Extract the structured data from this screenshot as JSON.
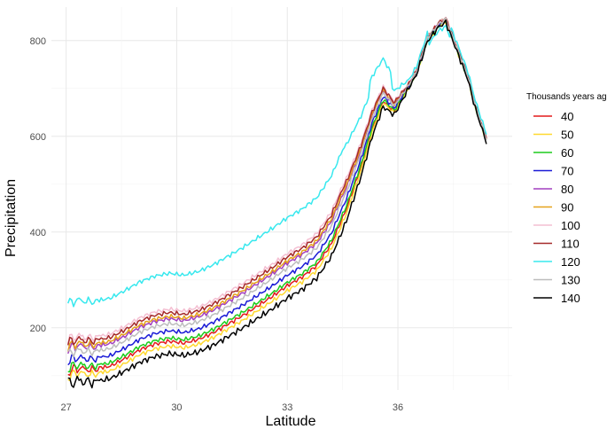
{
  "chart_data": {
    "type": "line",
    "title": "",
    "xlabel": "Latitude",
    "ylabel": "Precipitation",
    "xlim": [
      26.6,
      39.1
    ],
    "ylim": [
      70,
      870
    ],
    "x_ticks": [
      27,
      30,
      33,
      36
    ],
    "y_ticks": [
      200,
      400,
      600,
      800
    ],
    "grid": true,
    "legend": {
      "title": "Thousands years ago",
      "position": "right"
    },
    "base_curve": {
      "x": [
        27.05,
        27.3,
        27.7,
        28.2,
        28.6,
        29.0,
        29.4,
        29.8,
        30.2,
        30.6,
        31.0,
        31.4,
        31.8,
        32.2,
        32.6,
        33.0,
        33.4,
        33.8,
        34.2,
        34.6,
        35.0,
        35.3,
        35.6,
        35.9,
        36.2,
        36.5,
        36.8,
        37.1,
        37.3,
        37.5,
        37.7,
        37.9,
        38.1,
        38.4
      ],
      "y": [
        100,
        108,
        104,
        112,
        128,
        146,
        158,
        164,
        160,
        168,
        182,
        200,
        218,
        238,
        258,
        280,
        298,
        322,
        368,
        440,
        530,
        610,
        670,
        650,
        690,
        730,
        800,
        830,
        840,
        800,
        760,
        720,
        660,
        590
      ]
    },
    "series": [
      {
        "name": "40",
        "color": "#E41A1C",
        "offset": 8,
        "tail_weight": 0.25
      },
      {
        "name": "50",
        "color": "#FFD92F",
        "offset": -2,
        "tail_weight": 0.1
      },
      {
        "name": "60",
        "color": "#1DCC1D",
        "offset": 15,
        "tail_weight": 0.3
      },
      {
        "name": "70",
        "color": "#1A1AD6",
        "offset": 30,
        "tail_weight": 0.35
      },
      {
        "name": "80",
        "color": "#A23FBF",
        "offset": 55,
        "tail_weight": 0.4
      },
      {
        "name": "90",
        "color": "#E6A21A",
        "offset": 60,
        "tail_weight": 0.45
      },
      {
        "name": "100",
        "color": "#F4BFD2",
        "offset": 75,
        "tail_weight": 0.5
      },
      {
        "name": "110",
        "color": "#A52A2A",
        "offset": 68,
        "tail_weight": 0.55
      },
      {
        "name": "120",
        "color": "#38E8EE",
        "offset": 150,
        "tail_weight": 1.0
      },
      {
        "name": "130",
        "color": "#BDBDBD",
        "offset": 45,
        "tail_weight": 0.4
      },
      {
        "name": "140",
        "color": "#000000",
        "offset": -18,
        "tail_weight": 0.05
      }
    ]
  }
}
